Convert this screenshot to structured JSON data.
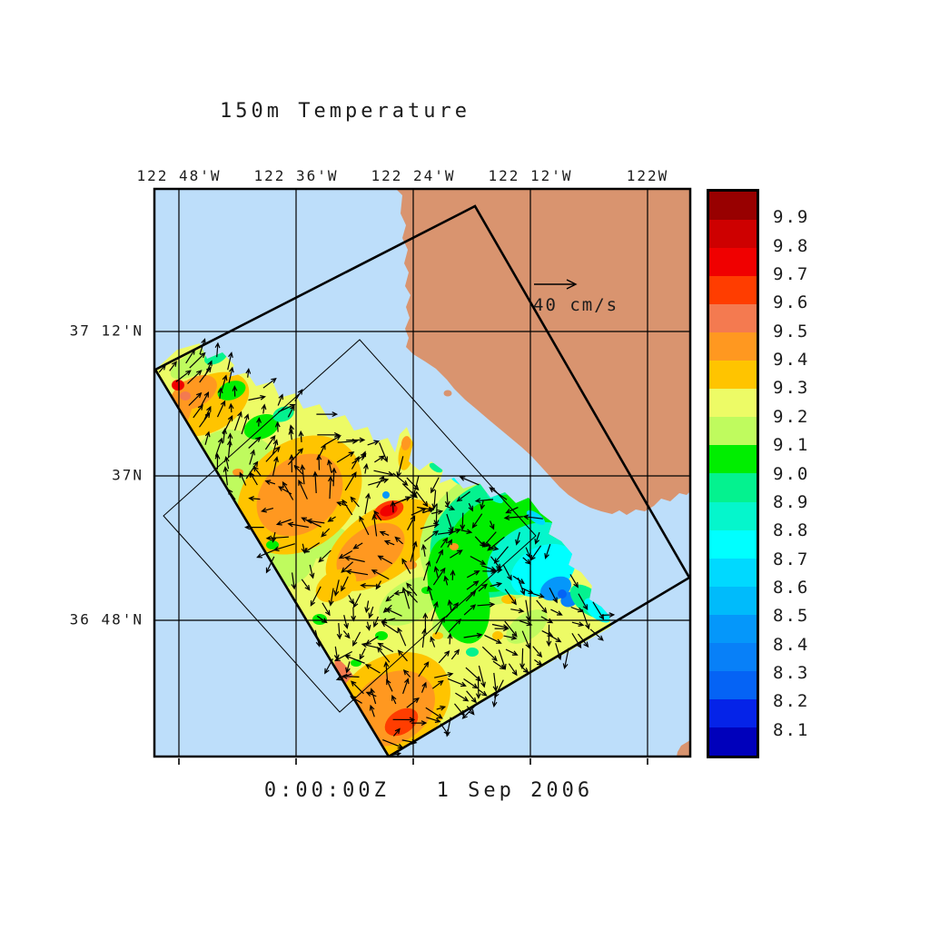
{
  "title": "150m Temperature",
  "timestamp": "0:00:00Z   1 Sep 2006",
  "vector_legend": {
    "label": "40 cm/s"
  },
  "axes": {
    "top_ticks": [
      "122 48'W",
      "122 36'W",
      "122 24'W",
      "122 12'W",
      "122W"
    ],
    "left_ticks": [
      "37 12'N",
      "37N",
      "36 48'N"
    ]
  },
  "colorbar": {
    "tick_labels": [
      "9.9",
      "9.8",
      "9.7",
      "9.6",
      "9.5",
      "9.4",
      "9.3",
      "9.2",
      "9.1",
      "9.0",
      "8.9",
      "8.8",
      "8.7",
      "8.6",
      "8.5",
      "8.4",
      "8.3",
      "8.2",
      "8.1"
    ],
    "segment_colors_top_to_bottom": [
      "#980000",
      "#CE0000",
      "#F00000",
      "#FF3D00",
      "#F47A50",
      "#FF9820",
      "#FFC400",
      "#EDFB66",
      "#BFFB5E",
      "#00EE00",
      "#04F28F",
      "#05F6CC",
      "#00FFFF",
      "#00D9FF",
      "#00BBFB",
      "#0597FA",
      "#0880F8",
      "#0563F5",
      "#0523E8",
      "#0000BB"
    ]
  },
  "map": {
    "ocean_color": "#BDDEFA",
    "land_color": "#D9946F",
    "grid_color": "#000000",
    "domain_boundary_color": "#000000"
  },
  "chart_data": {
    "type": "heatmap",
    "title": "150m Temperature",
    "subtitle": "0:00:00Z   1 Sep 2006",
    "x_tick_labels": [
      "122 48'W",
      "122 36'W",
      "122 24'W",
      "122 12'W",
      "122W"
    ],
    "y_tick_labels": [
      "37 12'N",
      "37N",
      "36 48'N"
    ],
    "colorbar_levels": [
      8.1,
      8.2,
      8.3,
      8.4,
      8.5,
      8.6,
      8.7,
      8.8,
      8.9,
      9.0,
      9.1,
      9.2,
      9.3,
      9.4,
      9.5,
      9.6,
      9.7,
      9.8,
      9.9
    ],
    "colorbar_colors_low_to_high": [
      "#0000BB",
      "#0523E8",
      "#0563F5",
      "#0880F8",
      "#0597FA",
      "#00BBFB",
      "#00D9FF",
      "#00FFFF",
      "#05F6CC",
      "#04F28F",
      "#00EE00",
      "#BFFB5E",
      "#EDFB66",
      "#FFC400",
      "#FF9820",
      "#F47A50",
      "#FF3D00",
      "#F00000",
      "#CE0000",
      "#980000"
    ],
    "vector_reference_label": "40 cm/s",
    "field_value_range_estimate": [
      8.3,
      9.7
    ],
    "legend_position": "right-colorbar",
    "grid": true
  }
}
